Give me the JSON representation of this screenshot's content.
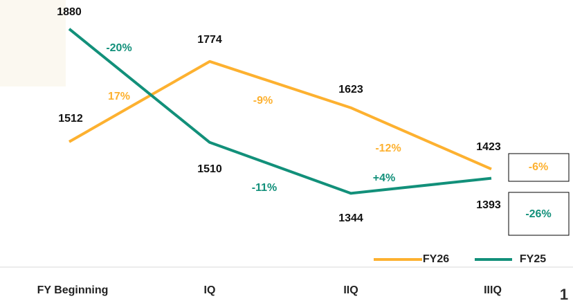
{
  "chart_data": {
    "type": "line",
    "categories": [
      "FY Beginning",
      "IQ",
      "IIQ",
      "IIIQ"
    ],
    "ylim": [
      1250,
      1900
    ],
    "series": [
      {
        "name": "FY26",
        "color": "#fdb130",
        "values": [
          1512,
          1774,
          1623,
          1423
        ],
        "changes": [
          "17%",
          "-9%",
          "-12%"
        ],
        "total_change": "-6%"
      },
      {
        "name": "FY25",
        "color": "#12907a",
        "values": [
          1880,
          1510,
          1344,
          1393
        ],
        "changes": [
          "-20%",
          "-11%",
          "+4%"
        ],
        "total_change": "-26%"
      }
    ],
    "page_number": "1"
  }
}
